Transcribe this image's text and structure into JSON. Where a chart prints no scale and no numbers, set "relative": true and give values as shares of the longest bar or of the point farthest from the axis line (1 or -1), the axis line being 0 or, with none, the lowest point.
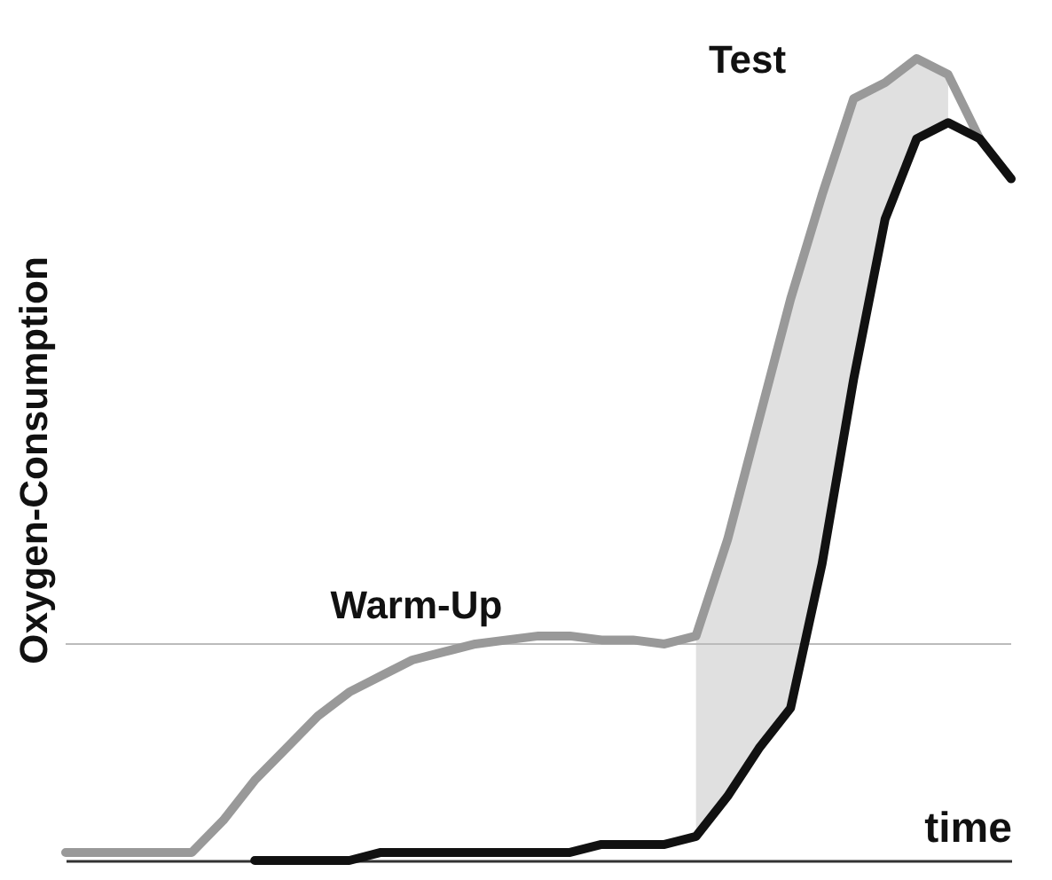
{
  "chart_data": {
    "type": "line",
    "relative": true,
    "xlabel": "time",
    "ylabel": "Oxygen-Consumption",
    "grid": false,
    "marker": "none",
    "line_style": "solid",
    "annotations": [
      "Warm-Up",
      "Test"
    ],
    "ref_lines": [
      {
        "axis": "y",
        "value": 0.27
      }
    ],
    "categories": [
      null,
      null,
      null,
      null,
      null,
      null,
      null,
      null,
      null,
      null,
      null,
      null,
      null,
      null,
      null,
      null,
      null,
      null,
      null,
      null,
      null,
      null,
      null,
      null,
      null,
      null,
      null,
      null,
      null,
      null,
      null
    ],
    "series": [
      {
        "color": "#999999",
        "values": [
          0.01,
          0.01,
          0.01,
          0.01,
          0.01,
          0.05,
          0.1,
          0.14,
          0.18,
          0.21,
          0.23,
          0.25,
          0.26,
          0.27,
          0.275,
          0.28,
          0.28,
          0.275,
          0.275,
          0.27,
          0.28,
          0.4,
          0.55,
          0.7,
          0.83,
          0.95,
          0.97,
          1,
          0.98,
          0.9,
          null
        ],
        "lower": [
          null,
          null,
          null,
          null,
          null,
          null,
          null,
          null,
          null,
          null,
          null,
          null,
          null,
          null,
          null,
          null,
          null,
          null,
          null,
          null,
          0.03,
          0.08,
          0.14,
          0.19,
          0.37,
          0.6,
          0.8,
          0.9,
          0.92,
          null,
          null
        ],
        "upper": [
          null,
          null,
          null,
          null,
          null,
          null,
          null,
          null,
          null,
          null,
          null,
          null,
          null,
          null,
          null,
          null,
          null,
          null,
          null,
          null,
          0.28,
          0.4,
          0.55,
          0.7,
          0.83,
          0.95,
          0.97,
          1,
          0.98,
          null,
          null
        ]
      },
      {
        "color": "#111111",
        "values": [
          null,
          null,
          null,
          null,
          null,
          null,
          0,
          0,
          0,
          0,
          0.01,
          0.01,
          0.01,
          0.01,
          0.01,
          0.01,
          0.01,
          0.02,
          0.02,
          0.02,
          0.03,
          0.08,
          0.14,
          0.19,
          0.37,
          0.6,
          0.8,
          0.9,
          0.92,
          0.9,
          0.85
        ]
      }
    ]
  }
}
